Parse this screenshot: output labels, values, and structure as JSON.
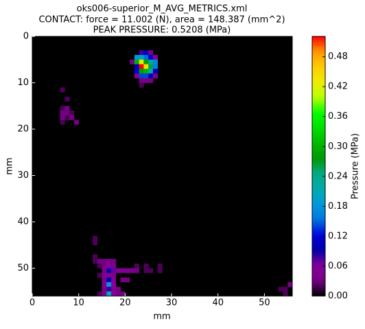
{
  "chart_data": {
    "type": "heatmap",
    "title": "oks006-superior_M_AVG_METRICS.xml",
    "subtitle": "CONTACT: force = 11.002 (N), area = 148.387 (mm^2)",
    "annotation": "PEAK PRESSURE: 0.5208 (MPa)",
    "x_label": "mm",
    "y_label": "mm",
    "colorbar_label": "Pressure (MPa)",
    "colormap": "nipy_spectral",
    "xlim": [
      0,
      56
    ],
    "ylim": [
      56,
      0
    ],
    "clim": [
      0,
      0.5208
    ],
    "xticks": [
      0,
      10,
      20,
      30,
      40,
      50
    ],
    "yticks": [
      0,
      10,
      20,
      30,
      40,
      50
    ],
    "cticks": [
      {
        "value": 0,
        "label": "0.00"
      },
      0.06,
      0.12,
      0.18,
      0.24,
      {
        "value": 0.3,
        "label": "0.30"
      },
      0.36,
      0.42,
      0.48
    ],
    "cells": [
      {
        "x": 23,
        "y": 3,
        "value": 0.08
      },
      {
        "x": 24,
        "y": 3,
        "value": 0.1
      },
      {
        "x": 25,
        "y": 3,
        "value": 0.04
      },
      {
        "x": 22,
        "y": 4,
        "value": 0.18
      },
      {
        "x": 23,
        "y": 4,
        "value": 0.2
      },
      {
        "x": 24,
        "y": 4,
        "value": 0.15
      },
      {
        "x": 25,
        "y": 4,
        "value": 0.12
      },
      {
        "x": 26,
        "y": 4,
        "value": 0.06
      },
      {
        "x": 21,
        "y": 5,
        "value": 0.03
      },
      {
        "x": 22,
        "y": 5,
        "value": 0.3
      },
      {
        "x": 23,
        "y": 5,
        "value": 0.42
      },
      {
        "x": 24,
        "y": 5,
        "value": 0.28
      },
      {
        "x": 25,
        "y": 5,
        "value": 0.24
      },
      {
        "x": 26,
        "y": 5,
        "value": 0.17
      },
      {
        "x": 22,
        "y": 6,
        "value": 0.1
      },
      {
        "x": 23,
        "y": 6,
        "value": 0.5208
      },
      {
        "x": 24,
        "y": 6,
        "value": 0.44
      },
      {
        "x": 25,
        "y": 6,
        "value": 0.26
      },
      {
        "x": 26,
        "y": 6,
        "value": 0.16
      },
      {
        "x": 22,
        "y": 7,
        "value": 0.12
      },
      {
        "x": 23,
        "y": 7,
        "value": 0.28
      },
      {
        "x": 24,
        "y": 7,
        "value": 0.3
      },
      {
        "x": 25,
        "y": 7,
        "value": 0.22
      },
      {
        "x": 26,
        "y": 7,
        "value": 0.1
      },
      {
        "x": 22,
        "y": 8,
        "value": 0.06
      },
      {
        "x": 23,
        "y": 8,
        "value": 0.14
      },
      {
        "x": 24,
        "y": 8,
        "value": 0.14
      },
      {
        "x": 25,
        "y": 8,
        "value": 0.1
      },
      {
        "x": 26,
        "y": 8,
        "value": 0.05
      },
      {
        "x": 23,
        "y": 9,
        "value": 0.03
      },
      {
        "x": 24,
        "y": 9,
        "value": 0.04
      },
      {
        "x": 25,
        "y": 9,
        "value": 0.03
      },
      {
        "x": 23,
        "y": 10,
        "value": 0.02
      },
      {
        "x": 6,
        "y": 11,
        "value": 0.02
      },
      {
        "x": 7,
        "y": 13,
        "value": 0.02
      },
      {
        "x": 6,
        "y": 15,
        "value": 0.02
      },
      {
        "x": 7,
        "y": 15,
        "value": 0.03
      },
      {
        "x": 6,
        "y": 16,
        "value": 0.03
      },
      {
        "x": 7,
        "y": 16,
        "value": 0.03
      },
      {
        "x": 8,
        "y": 16,
        "value": 0.02
      },
      {
        "x": 6,
        "y": 17,
        "value": 0.03
      },
      {
        "x": 7,
        "y": 17,
        "value": 0.02
      },
      {
        "x": 8,
        "y": 17,
        "value": 0.03
      },
      {
        "x": 9,
        "y": 18,
        "value": 0.03
      },
      {
        "x": 6,
        "y": 18,
        "value": 0.02
      },
      {
        "x": 13,
        "y": 43,
        "value": 0.02
      },
      {
        "x": 13,
        "y": 44,
        "value": 0.02
      },
      {
        "x": 13,
        "y": 47,
        "value": 0.02
      },
      {
        "x": 13,
        "y": 48,
        "value": 0.02
      },
      {
        "x": 14,
        "y": 48,
        "value": 0.03
      },
      {
        "x": 15,
        "y": 48,
        "value": 0.03
      },
      {
        "x": 16,
        "y": 48,
        "value": 0.04
      },
      {
        "x": 17,
        "y": 48,
        "value": 0.03
      },
      {
        "x": 14,
        "y": 49,
        "value": 0.02
      },
      {
        "x": 15,
        "y": 49,
        "value": 0.03
      },
      {
        "x": 16,
        "y": 49,
        "value": 0.06
      },
      {
        "x": 17,
        "y": 49,
        "value": 0.04
      },
      {
        "x": 22,
        "y": 49,
        "value": 0.02
      },
      {
        "x": 24,
        "y": 49,
        "value": 0.02
      },
      {
        "x": 27,
        "y": 49,
        "value": 0.02
      },
      {
        "x": 15,
        "y": 50,
        "value": 0.04
      },
      {
        "x": 16,
        "y": 50,
        "value": 0.09
      },
      {
        "x": 17,
        "y": 50,
        "value": 0.07
      },
      {
        "x": 18,
        "y": 50,
        "value": 0.05
      },
      {
        "x": 19,
        "y": 50,
        "value": 0.05
      },
      {
        "x": 20,
        "y": 50,
        "value": 0.05
      },
      {
        "x": 21,
        "y": 50,
        "value": 0.04
      },
      {
        "x": 22,
        "y": 50,
        "value": 0.03
      },
      {
        "x": 24,
        "y": 50,
        "value": 0.02
      },
      {
        "x": 25,
        "y": 50,
        "value": 0.02
      },
      {
        "x": 27,
        "y": 50,
        "value": 0.02
      },
      {
        "x": 14,
        "y": 51,
        "value": 0.02
      },
      {
        "x": 15,
        "y": 51,
        "value": 0.04
      },
      {
        "x": 16,
        "y": 51,
        "value": 0.05
      },
      {
        "x": 17,
        "y": 51,
        "value": 0.04
      },
      {
        "x": 15,
        "y": 52,
        "value": 0.04
      },
      {
        "x": 16,
        "y": 52,
        "value": 0.1
      },
      {
        "x": 17,
        "y": 52,
        "value": 0.05
      },
      {
        "x": 19,
        "y": 52,
        "value": 0.03
      },
      {
        "x": 20,
        "y": 52,
        "value": 0.03
      },
      {
        "x": 15,
        "y": 53,
        "value": 0.05
      },
      {
        "x": 16,
        "y": 53,
        "value": 0.18
      },
      {
        "x": 17,
        "y": 53,
        "value": 0.06
      },
      {
        "x": 55,
        "y": 53,
        "value": 0.04
      },
      {
        "x": 15,
        "y": 54,
        "value": 0.04
      },
      {
        "x": 16,
        "y": 54,
        "value": 0.08
      },
      {
        "x": 17,
        "y": 54,
        "value": 0.05
      },
      {
        "x": 18,
        "y": 54,
        "value": 0.04
      },
      {
        "x": 53,
        "y": 54,
        "value": 0.02
      },
      {
        "x": 54,
        "y": 54,
        "value": 0.02
      },
      {
        "x": 14,
        "y": 55,
        "value": 0.02
      },
      {
        "x": 15,
        "y": 55,
        "value": 0.04
      },
      {
        "x": 16,
        "y": 55,
        "value": 0.2
      },
      {
        "x": 17,
        "y": 55,
        "value": 0.06
      },
      {
        "x": 18,
        "y": 55,
        "value": 0.03
      },
      {
        "x": 19,
        "y": 55,
        "value": 0.03
      },
      {
        "x": 54,
        "y": 55,
        "value": 0.02
      }
    ]
  }
}
